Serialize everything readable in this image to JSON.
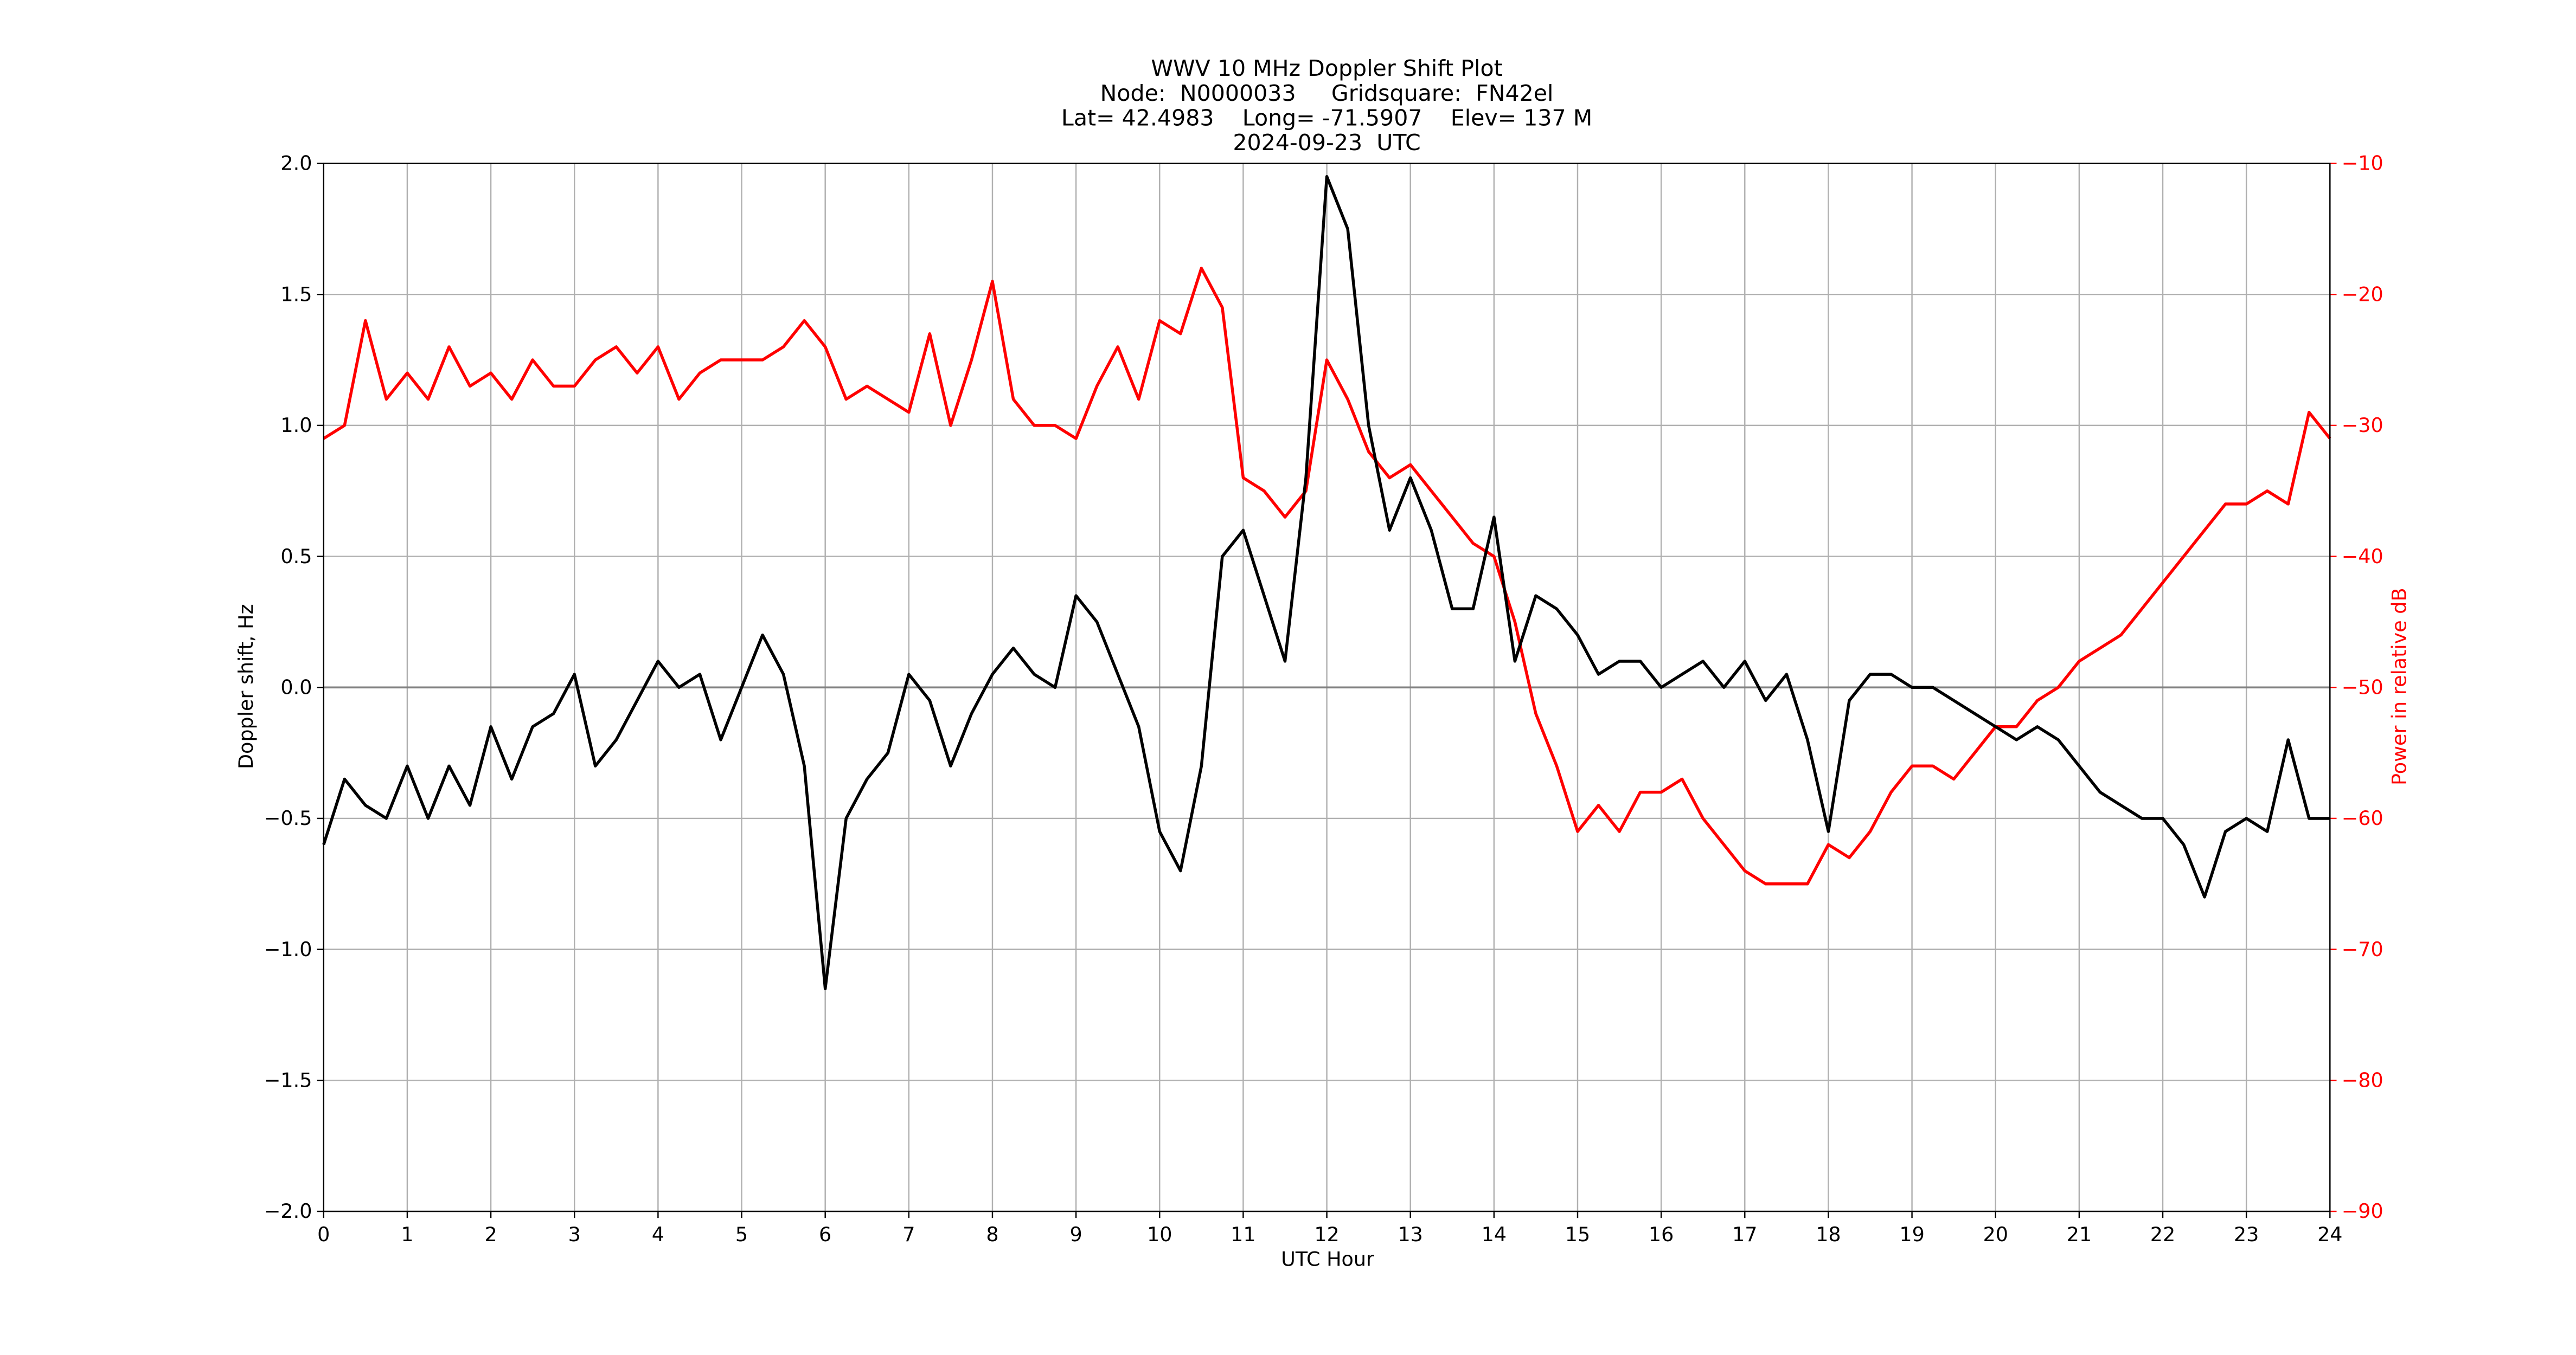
{
  "chart_data": {
    "type": "line",
    "title": [
      "WWV 10 MHz Doppler Shift Plot",
      "Node:  N0000033     Gridsquare:  FN42el",
      "Lat= 42.4983    Long= -71.5907    Elev= 137 M",
      "2024-09-23  UTC"
    ],
    "xlabel": "UTC Hour",
    "ylabel": "Doppler shift, Hz",
    "y2label": "Power in relative dB",
    "x": [
      0,
      0.25,
      0.5,
      0.75,
      1,
      1.25,
      1.5,
      1.75,
      2,
      2.25,
      2.5,
      2.75,
      3,
      3.25,
      3.5,
      3.75,
      4,
      4.25,
      4.5,
      4.75,
      5,
      5.25,
      5.5,
      5.75,
      6,
      6.25,
      6.5,
      6.75,
      7,
      7.25,
      7.5,
      7.75,
      8,
      8.25,
      8.5,
      8.75,
      9,
      9.25,
      9.5,
      9.75,
      10,
      10.25,
      10.5,
      10.75,
      11,
      11.25,
      11.5,
      11.75,
      12,
      12.25,
      12.5,
      12.75,
      13,
      13.25,
      13.5,
      13.75,
      14,
      14.25,
      14.5,
      14.75,
      15,
      15.25,
      15.5,
      15.75,
      16,
      16.25,
      16.5,
      16.75,
      17,
      17.25,
      17.5,
      17.75,
      18,
      18.25,
      18.5,
      18.75,
      19,
      19.25,
      19.5,
      19.75,
      20,
      20.25,
      20.5,
      20.75,
      21,
      21.25,
      21.5,
      21.75,
      22,
      22.25,
      22.5,
      22.75,
      23,
      23.25,
      23.5,
      23.75,
      24
    ],
    "series": [
      {
        "name": "Doppler shift",
        "color": "#000000",
        "axis": "y",
        "values": [
          -0.6,
          -0.35,
          -0.45,
          -0.5,
          -0.3,
          -0.5,
          -0.3,
          -0.45,
          -0.15,
          -0.35,
          -0.15,
          -0.1,
          0.05,
          -0.3,
          -0.2,
          -0.05,
          0.1,
          0.0,
          0.05,
          -0.2,
          0.0,
          0.2,
          0.05,
          -0.3,
          -1.15,
          -0.5,
          -0.35,
          -0.25,
          0.05,
          -0.05,
          -0.3,
          -0.1,
          0.05,
          0.15,
          0.05,
          0.0,
          0.35,
          0.25,
          0.05,
          -0.15,
          -0.55,
          -0.7,
          -0.3,
          0.5,
          0.6,
          0.35,
          0.1,
          0.8,
          1.95,
          1.75,
          1.0,
          0.6,
          0.8,
          0.6,
          0.3,
          0.3,
          0.65,
          0.1,
          0.35,
          0.3,
          0.2,
          0.05,
          0.1,
          0.1,
          0.0,
          0.05,
          0.1,
          0.0,
          0.1,
          -0.05,
          0.05,
          -0.2,
          -0.55,
          -0.05,
          0.05,
          0.05,
          0.0,
          0.0,
          -0.05,
          -0.1,
          -0.15,
          -0.2,
          -0.15,
          -0.2,
          -0.3,
          -0.4,
          -0.45,
          -0.5,
          -0.5,
          -0.6,
          -0.8,
          -0.55,
          -0.5,
          -0.55,
          -0.2,
          -0.5,
          -0.5
        ]
      },
      {
        "name": "Power",
        "color": "#ff0000",
        "axis": "y2",
        "values": [
          -31,
          -30,
          -22,
          -28,
          -26,
          -28,
          -24,
          -27,
          -26,
          -28,
          -25,
          -27,
          -27,
          -25,
          -24,
          -26,
          -24,
          -28,
          -26,
          -25,
          -25,
          -25,
          -24,
          -22,
          -24,
          -28,
          -27,
          -28,
          -29,
          -23,
          -30,
          -25,
          -19,
          -28,
          -30,
          -30,
          -31,
          -27,
          -24,
          -28,
          -22,
          -23,
          -18,
          -21,
          -34,
          -35,
          -37,
          -35,
          -25,
          -28,
          -32,
          -34,
          -33,
          -35,
          -37,
          -39,
          -40,
          -45,
          -52,
          -56,
          -61,
          -59,
          -61,
          -58,
          -58,
          -57,
          -60,
          -62,
          -64,
          -65,
          -65,
          -65,
          -62,
          -63,
          -61,
          -58,
          -56,
          -56,
          -57,
          -55,
          -53,
          -53,
          -51,
          -50,
          -48,
          -47,
          -46,
          -44,
          -42,
          -40,
          -38,
          -36,
          -36,
          -35,
          -36,
          -29,
          -31
        ]
      }
    ],
    "xlim": [
      0,
      24
    ],
    "xticks": [
      0,
      1,
      2,
      3,
      4,
      5,
      6,
      7,
      8,
      9,
      10,
      11,
      12,
      13,
      14,
      15,
      16,
      17,
      18,
      19,
      20,
      21,
      22,
      23,
      24
    ],
    "ylim": [
      -2.0,
      2.0
    ],
    "yticks": [
      {
        "value": -2.0,
        "label": "−2.0"
      },
      {
        "value": -1.5,
        "label": "−1.5"
      },
      {
        "value": -1.0,
        "label": "−1.0"
      },
      {
        "value": -0.5,
        "label": "−0.5"
      },
      {
        "value": 0.0,
        "label": "0.0"
      },
      {
        "value": 0.5,
        "label": "0.5"
      },
      {
        "value": 1.0,
        "label": "1.0"
      },
      {
        "value": 1.5,
        "label": "1.5"
      },
      {
        "value": 2.0,
        "label": "2.0"
      }
    ],
    "y2lim": [
      -90,
      -10
    ],
    "y2ticks": [
      {
        "value": -90,
        "label": "−90"
      },
      {
        "value": -80,
        "label": "−80"
      },
      {
        "value": -70,
        "label": "−70"
      },
      {
        "value": -60,
        "label": "−60"
      },
      {
        "value": -50,
        "label": "−50"
      },
      {
        "value": -40,
        "label": "−40"
      },
      {
        "value": -30,
        "label": "−30"
      },
      {
        "value": -20,
        "label": "−20"
      },
      {
        "value": -10,
        "label": "−10"
      }
    ],
    "grid": true,
    "zero_line": true
  }
}
